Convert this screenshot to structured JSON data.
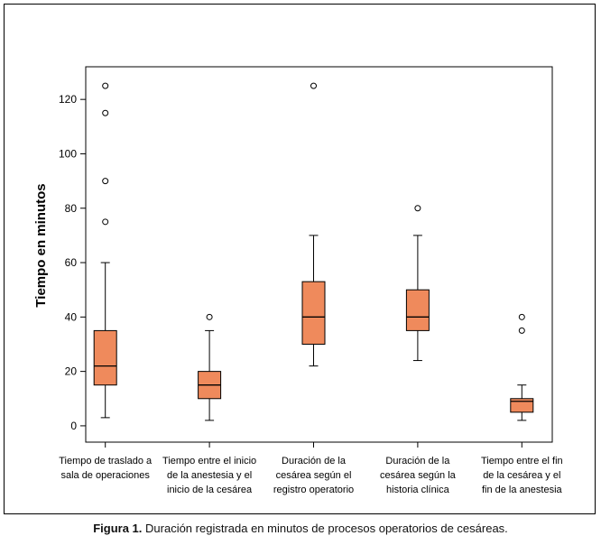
{
  "chart_data": {
    "type": "boxplot",
    "ylabel": "Tiempo en minutos",
    "ylim": [
      -6,
      132
    ],
    "yticks": [
      0,
      20,
      40,
      60,
      80,
      100,
      120
    ],
    "box_color": "#ef8a5c",
    "categories": [
      [
        "Tiempo de traslado a",
        "sala de operaciones"
      ],
      [
        "Tiempo entre el inicio",
        "de la anestesia y el",
        "inicio de la cesárea"
      ],
      [
        "Duración de la",
        "cesárea según el",
        "registro operatorio"
      ],
      [
        "Duración de la",
        "cesárea según la",
        "historia clínica"
      ],
      [
        "Tiempo entre el fin",
        "de la cesárea y el",
        "fin de la anestesia"
      ]
    ],
    "boxes": [
      {
        "whisker_low": 3,
        "q1": 15,
        "median": 22,
        "q3": 35,
        "whisker_high": 60,
        "outliers": [
          75,
          90,
          115,
          125
        ]
      },
      {
        "whisker_low": 2,
        "q1": 10,
        "median": 15,
        "q3": 20,
        "whisker_high": 35,
        "outliers": [
          40
        ]
      },
      {
        "whisker_low": 22,
        "q1": 30,
        "median": 40,
        "q3": 53,
        "whisker_high": 70,
        "outliers": [
          125
        ]
      },
      {
        "whisker_low": 24,
        "q1": 35,
        "median": 40,
        "q3": 50,
        "whisker_high": 70,
        "outliers": [
          80
        ]
      },
      {
        "whisker_low": 2,
        "q1": 5,
        "median": 9,
        "q3": 10,
        "whisker_high": 15,
        "outliers": [
          35,
          40
        ]
      }
    ]
  },
  "caption": {
    "figure": "Figura 1.",
    "text": "Duración registrada en minutos de procesos operatorios de cesáreas."
  }
}
